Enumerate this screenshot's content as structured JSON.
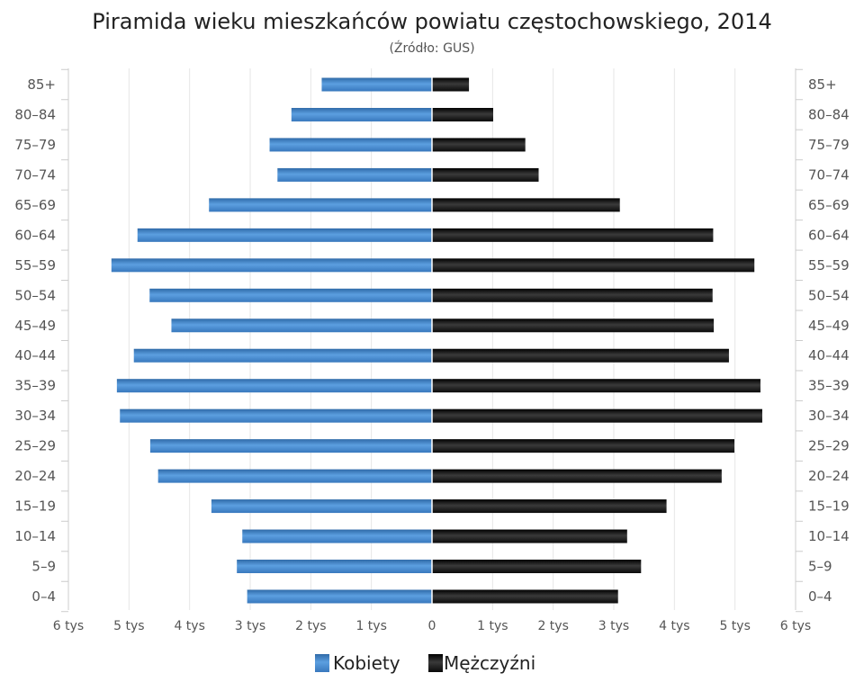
{
  "chart_data": {
    "type": "bar",
    "orientation": "horizontal",
    "layout": "population-pyramid",
    "title": "Piramida wieku mieszkańców powiatu częstochowskiego, 2014",
    "subtitle": "(Źródło: GUS)",
    "categories": [
      "85+",
      "80–84",
      "75–79",
      "70–74",
      "65–69",
      "60–64",
      "55–59",
      "50–54",
      "45–49",
      "40–44",
      "35–39",
      "30–34",
      "25–29",
      "20–24",
      "15–19",
      "10–14",
      "5–9",
      "0–4"
    ],
    "series": [
      {
        "name": "Kobiety",
        "side": "left",
        "color": "#3d7ec2",
        "values": [
          1820,
          2320,
          2680,
          2550,
          3680,
          4860,
          5290,
          4660,
          4300,
          4920,
          5200,
          5150,
          4650,
          4520,
          3640,
          3130,
          3220,
          3050
        ]
      },
      {
        "name": "Mężczyźni",
        "side": "right",
        "color": "#111111",
        "values": [
          610,
          1010,
          1540,
          1760,
          3100,
          4640,
          5320,
          4630,
          4650,
          4900,
          5420,
          5450,
          4990,
          4780,
          3870,
          3220,
          3450,
          3070
        ]
      }
    ],
    "xlim": [
      -6000,
      6000
    ],
    "x_ticks": [
      -6000,
      -5000,
      -4000,
      -3000,
      -2000,
      -1000,
      0,
      1000,
      2000,
      3000,
      4000,
      5000,
      6000
    ],
    "x_tick_labels": [
      "6 tys",
      "5 tys",
      "4 tys",
      "3 tys",
      "2 tys",
      "1 tys",
      "0",
      "1 tys",
      "2 tys",
      "3 tys",
      "4 tys",
      "5 tys",
      "6 tys"
    ],
    "grid": "vertical",
    "legend_placement": "bottom-center",
    "category_labels_both_sides": true
  }
}
